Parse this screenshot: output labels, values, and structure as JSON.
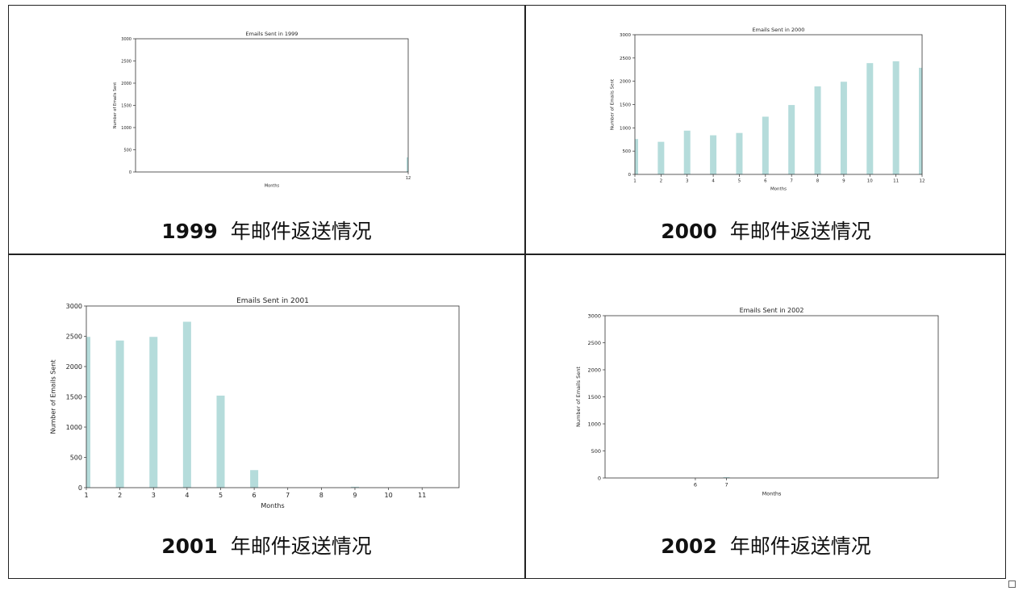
{
  "charts": [
    {
      "caption_year": "1999",
      "caption_text": "年邮件返送情况"
    },
    {
      "caption_year": "2000",
      "caption_text": "年邮件返送情况"
    },
    {
      "caption_year": "2001",
      "caption_text": "年邮件返送情况"
    },
    {
      "caption_year": "2002",
      "caption_text": "年邮件返送情况"
    }
  ],
  "chart_data": [
    {
      "type": "bar",
      "title": "Emails Sent in 1999",
      "xlabel": "Months",
      "ylabel": "Number of Emails Sent",
      "x": [
        12
      ],
      "values": [
        330
      ],
      "xticks": [
        12
      ],
      "yticks": [
        0,
        500,
        1000,
        1500,
        2000,
        2500,
        3000
      ],
      "xlim": [
        1,
        12
      ],
      "ylim": [
        0,
        3000
      ],
      "color": "#b5dcdb"
    },
    {
      "type": "bar",
      "title": "Emails Sent in 2000",
      "xlabel": "Months",
      "ylabel": "Number of Emails Sent",
      "x": [
        1,
        2,
        3,
        4,
        5,
        6,
        7,
        8,
        9,
        10,
        11,
        12
      ],
      "values": [
        760,
        700,
        940,
        840,
        890,
        1240,
        1490,
        1890,
        1990,
        2390,
        2430,
        2290
      ],
      "xticks": [
        1,
        2,
        3,
        4,
        5,
        6,
        7,
        8,
        9,
        10,
        11,
        12
      ],
      "yticks": [
        0,
        500,
        1000,
        1500,
        2000,
        2500,
        3000
      ],
      "xlim": [
        1,
        12
      ],
      "ylim": [
        0,
        3000
      ],
      "color": "#b5dcdb"
    },
    {
      "type": "bar",
      "title": "Emails Sent in 2001",
      "xlabel": "Months",
      "ylabel": "Number of Emails Sent",
      "x": [
        1,
        2,
        3,
        4,
        5,
        6,
        9
      ],
      "values": [
        2490,
        2430,
        2490,
        2740,
        1520,
        290,
        15
      ],
      "xticks": [
        1,
        2,
        3,
        4,
        5,
        6,
        7,
        8,
        9,
        10,
        11
      ],
      "yticks": [
        0,
        500,
        1000,
        1500,
        2000,
        2500,
        3000
      ],
      "xlim": [
        1,
        12.1
      ],
      "ylim": [
        0,
        3000
      ],
      "color": "#b5dcdb"
    },
    {
      "type": "bar",
      "title": "Emails Sent in 2002",
      "xlabel": "Months",
      "ylabel": "Number of Emails Sent",
      "x": [
        7
      ],
      "values": [
        15
      ],
      "xticks": [
        6,
        7
      ],
      "yticks": [
        0,
        500,
        1000,
        1500,
        2000,
        2500,
        3000
      ],
      "xlim": [
        3.1,
        13.8
      ],
      "ylim": [
        0,
        3000
      ],
      "color": "#b5dcdb"
    }
  ]
}
